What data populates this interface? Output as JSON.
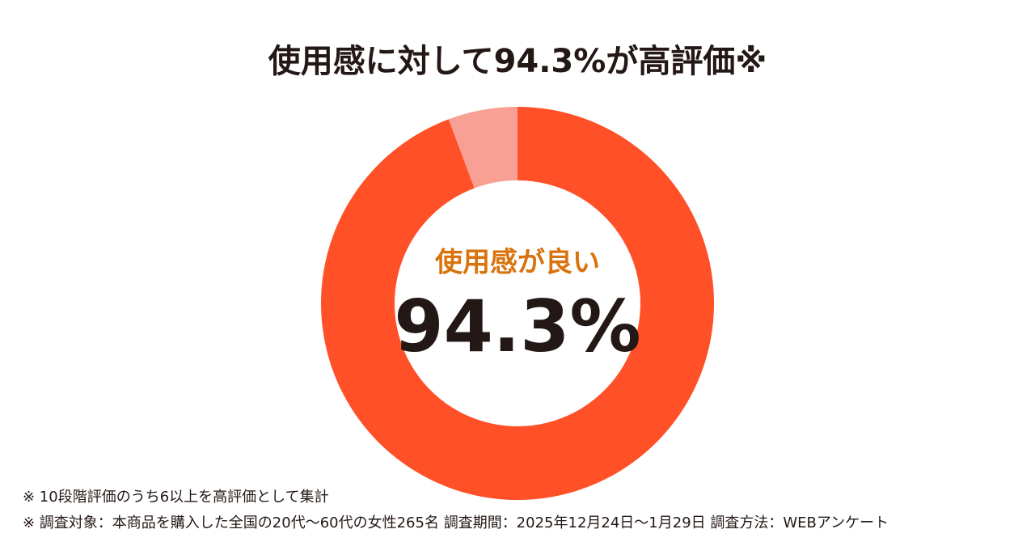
{
  "chart_data": {
    "type": "donut",
    "title": "使用感に対して94.3%が高評価※",
    "categories": [
      "使用感が良い",
      null
    ],
    "values": [
      94.3,
      5.7
    ],
    "value_labels": [
      "94.3%",
      null
    ],
    "colors": [
      "#ff5028",
      "#f7a093"
    ],
    "notes": [
      "※ 10段階評価のうち6以上を高評価として集計",
      "※ 調査対象：本商品を購入した全国の20代〜60代の女性265名 調査期間：2025年12月24日〜1月29日 調査方法：WEBアンケート"
    ]
  }
}
